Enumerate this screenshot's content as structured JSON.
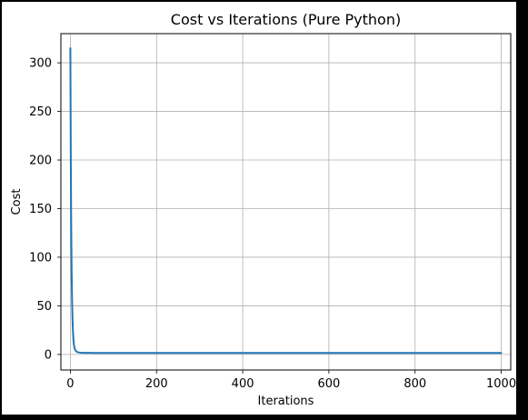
{
  "chart_data": {
    "type": "line",
    "title": "Cost vs Iterations (Pure Python)",
    "xlabel": "Iterations",
    "ylabel": "Cost",
    "xlim": [
      -22,
      1022
    ],
    "ylim": [
      -16,
      330
    ],
    "xticks": [
      0,
      200,
      400,
      600,
      800,
      1000
    ],
    "yticks": [
      0,
      50,
      100,
      150,
      200,
      250,
      300
    ],
    "grid": true,
    "line_color": "#1f77b4",
    "series": [
      {
        "x": [
          0,
          1,
          2,
          3,
          4,
          5,
          6,
          7,
          8,
          9,
          10,
          12,
          14,
          16,
          20,
          25,
          30,
          40,
          60,
          100,
          200,
          300,
          400,
          500,
          600,
          700,
          800,
          900,
          1000
        ],
        "values": [
          315,
          200,
          128,
          83,
          54,
          36,
          24,
          16,
          11,
          8,
          6,
          4,
          3,
          2.5,
          2,
          1.8,
          1.7,
          1.6,
          1.5,
          1.5,
          1.5,
          1.5,
          1.5,
          1.5,
          1.5,
          1.5,
          1.5,
          1.5,
          1.5
        ]
      }
    ]
  }
}
